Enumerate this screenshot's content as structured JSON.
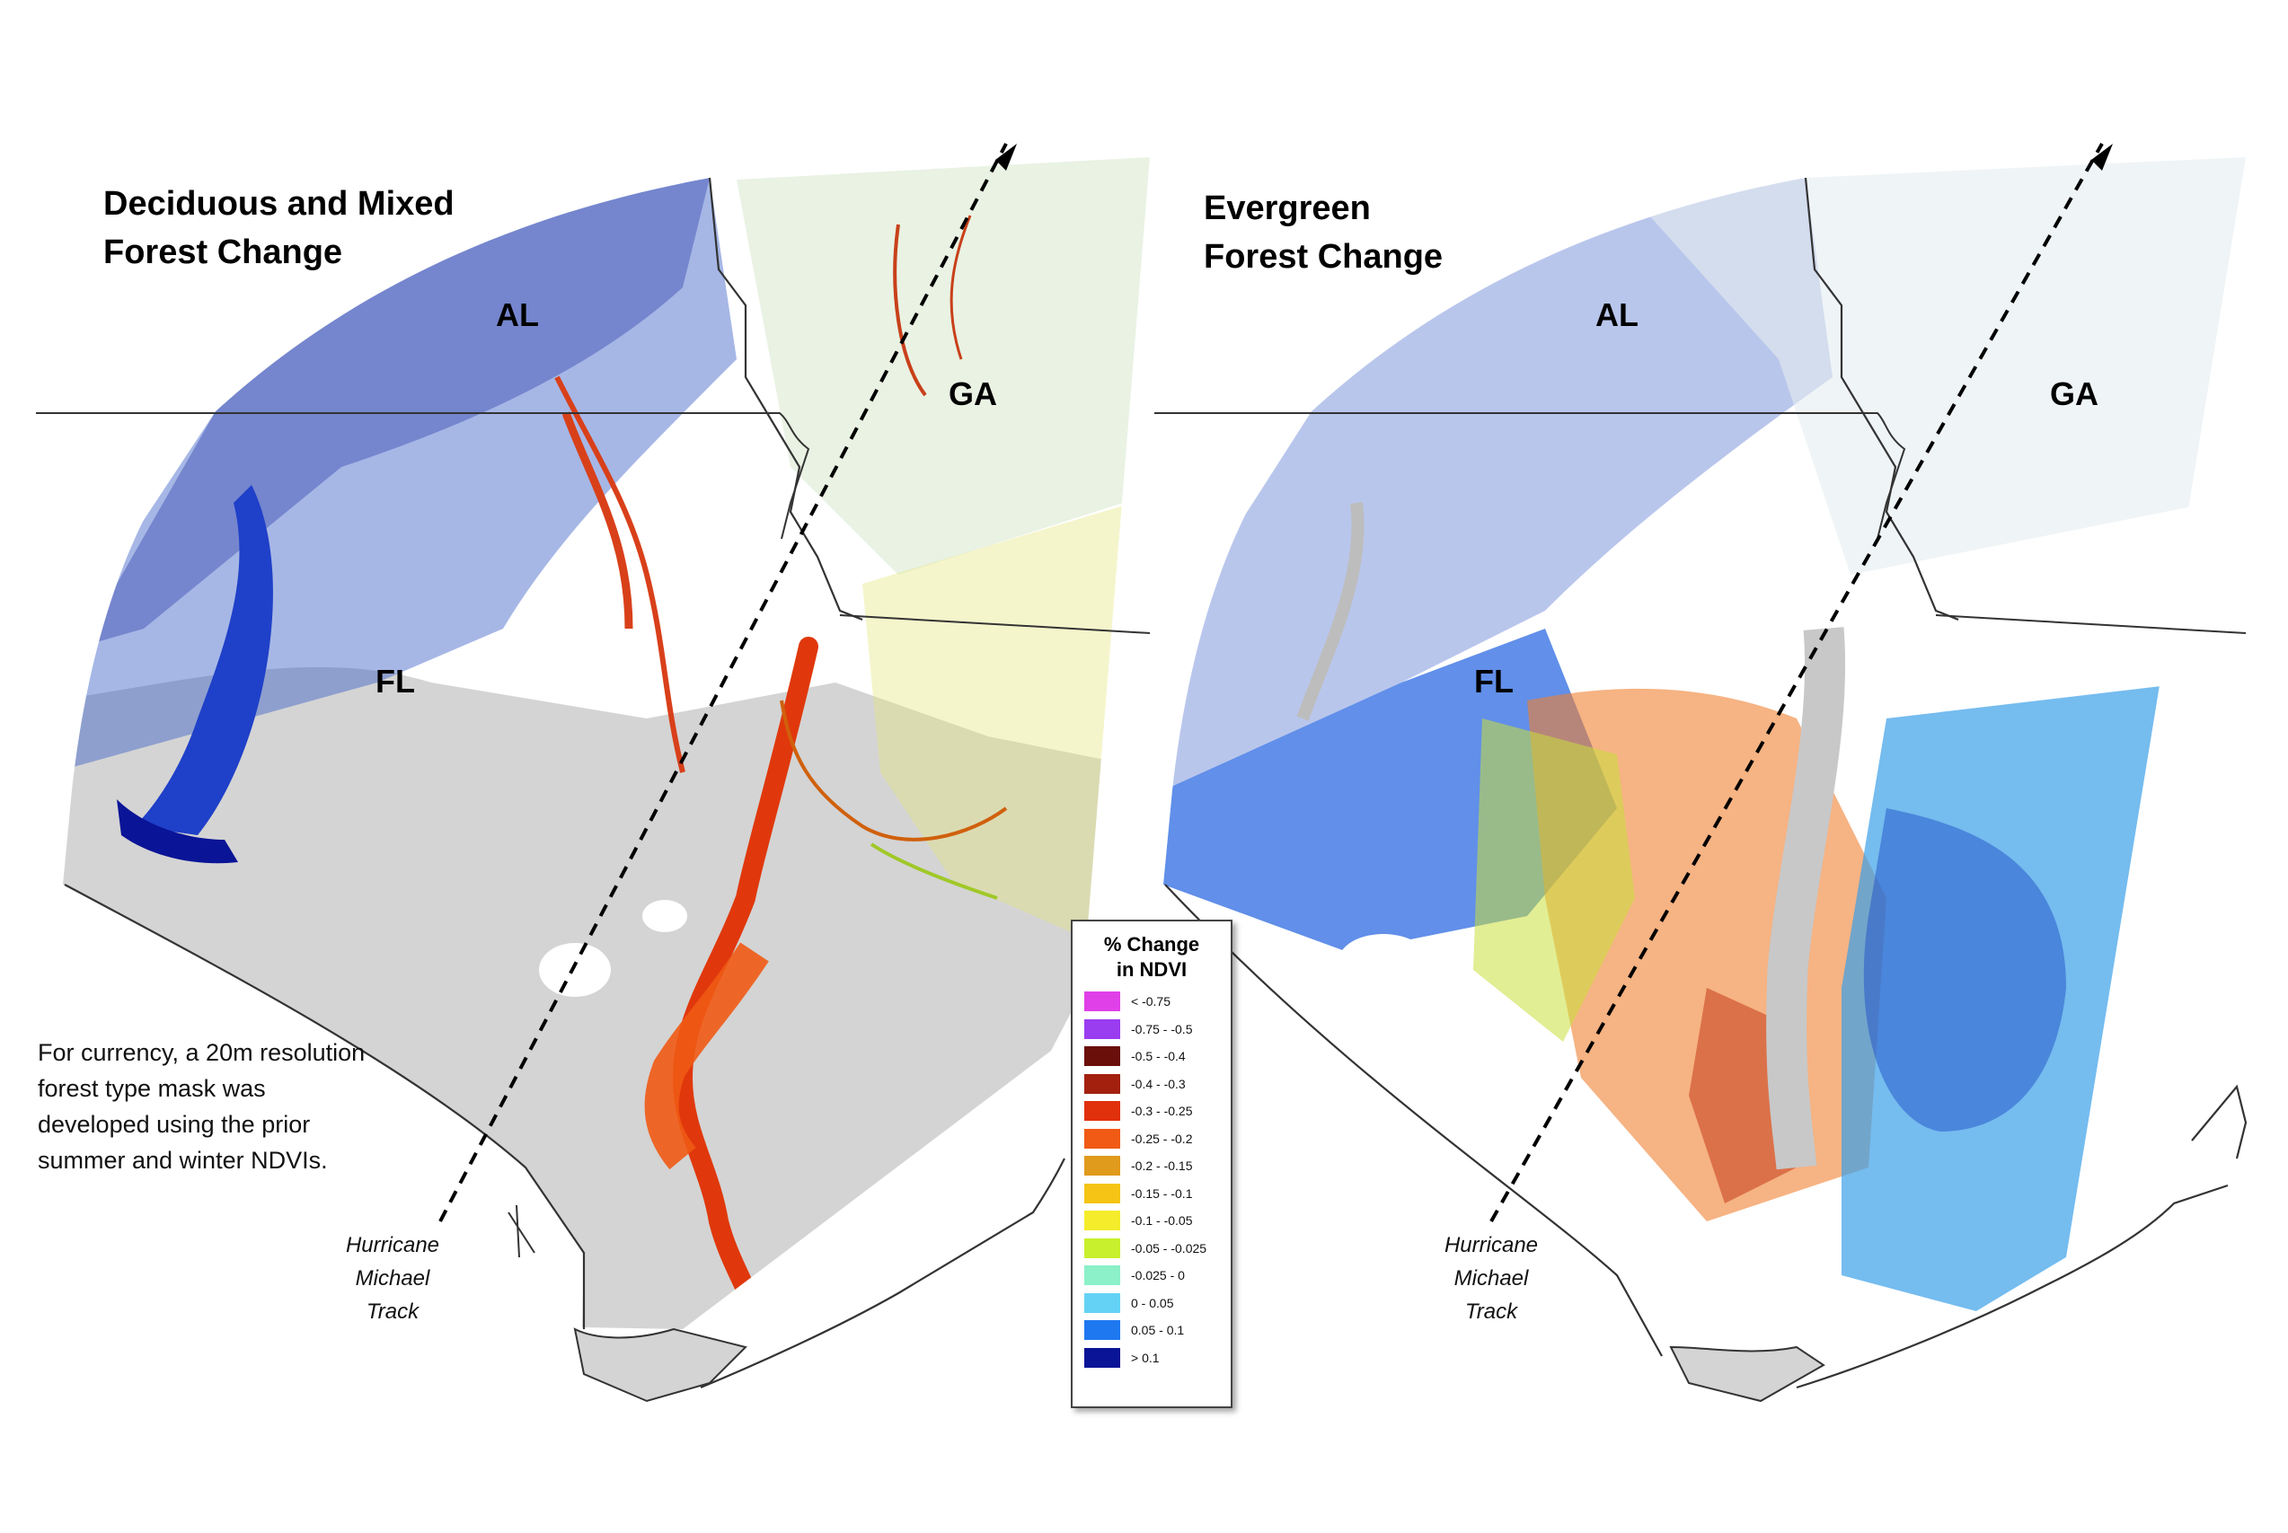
{
  "panels": [
    {
      "id": "deciduous",
      "title_line1": "Deciduous and Mixed",
      "title_line2": "Forest Change",
      "states": {
        "al": "AL",
        "ga": "GA",
        "fl": "FL"
      }
    },
    {
      "id": "evergreen",
      "title_line1": "Evergreen",
      "title_line2": "Forest Change",
      "states": {
        "al": "AL",
        "ga": "GA",
        "fl": "FL"
      }
    }
  ],
  "track_label": {
    "line1": "Hurricane",
    "line2": "Michael",
    "line3": "Track"
  },
  "note": "For currency, a 20m resolution forest type mask was developed  using the prior summer and winter NDVIs.",
  "legend": {
    "title_line1": "% Change",
    "title_line2": "in NDVI",
    "items": [
      {
        "label": "< -0.75",
        "color": "#e040e8"
      },
      {
        "label": "-0.75 - -0.5",
        "color": "#9a3cf0"
      },
      {
        "label": "-0.5 - -0.4",
        "color": "#6b0f0a"
      },
      {
        "label": "-0.4 - -0.3",
        "color": "#a3200f"
      },
      {
        "label": "-0.3 - -0.25",
        "color": "#e0300c"
      },
      {
        "label": "-0.25 - -0.2",
        "color": "#f05a14"
      },
      {
        "label": "-0.2 - -0.15",
        "color": "#e09a1c"
      },
      {
        "label": "-0.15 - -0.1",
        "color": "#f5c414"
      },
      {
        "label": "-0.1 - -0.05",
        "color": "#f5ec2c"
      },
      {
        "label": "-0.05 - -0.025",
        "color": "#c8f02c"
      },
      {
        "label": "-0.025 - 0",
        "color": "#8cf0c8"
      },
      {
        "label": "0 - 0.05",
        "color": "#64d2f5"
      },
      {
        "label": "0.05 - 0.1",
        "color": "#1e78f0"
      },
      {
        "label": "> 0.1",
        "color": "#0a1496"
      }
    ]
  }
}
